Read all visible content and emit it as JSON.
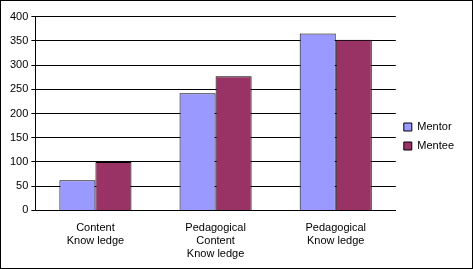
{
  "chart_data": {
    "type": "bar",
    "categories": [
      "Content Know ledge",
      "Pedagogical Content Know ledge",
      "Pedagogical Know ledge"
    ],
    "series": [
      {
        "name": "Mentor",
        "color": "#9999ff",
        "values": [
          62,
          242,
          365
        ]
      },
      {
        "name": "Mentee",
        "color": "#993366",
        "values": [
          100,
          277,
          352
        ]
      }
    ],
    "ylim": [
      0,
      400
    ],
    "yticks": [
      0,
      50,
      100,
      150,
      200,
      250,
      300,
      350,
      400
    ],
    "grid": true,
    "legend": "right"
  }
}
